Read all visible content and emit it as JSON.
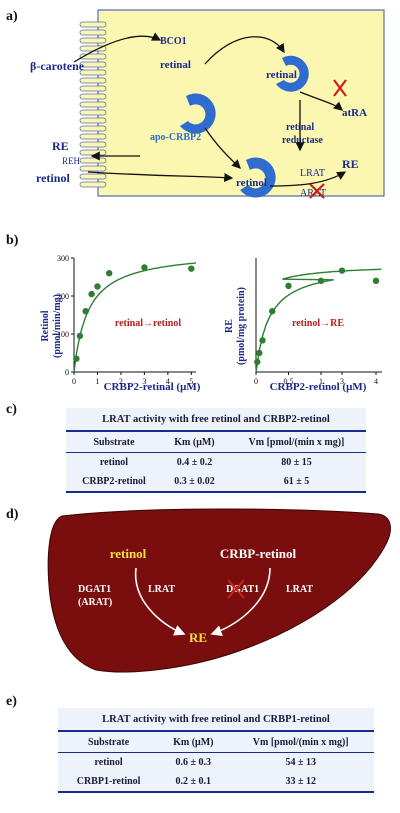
{
  "panel_a": {
    "label": "a)",
    "beta_carotene": "β-carotene",
    "bco1": "BCO1",
    "retinal_top": "retinal",
    "retinal_right": "retinal",
    "atra": "atRA",
    "apo_crbp2": "apo-CRBP2",
    "retinal_reductase_1": "retinal",
    "retinal_reductase_2": "reductase",
    "re_left": "RE",
    "reh": "REH",
    "retinol_left": "retinol",
    "retinol_bound": "retinol",
    "lrat": "LRAT",
    "arat": "ARAT",
    "re_right": "RE"
  },
  "panel_b": {
    "label": "b)",
    "chart_data": [
      {
        "type": "scatter",
        "ylabel_1": "Retinol",
        "ylabel_2": "(pmol/min/mg)",
        "xlabel": "CRBP2-retinal (μM)",
        "annotation": "retinal→retinol",
        "xticks": [
          "0",
          "1",
          "2",
          "3",
          "4",
          "5"
        ],
        "yticks": [
          "0",
          "100",
          "200",
          "300"
        ],
        "ylim": [
          0,
          300
        ],
        "xlim": [
          0,
          5.2
        ],
        "x": [
          0.1,
          0.25,
          0.5,
          0.75,
          1.0,
          1.5,
          3.0,
          5.0
        ],
        "y": [
          35,
          95,
          160,
          205,
          225,
          260,
          275,
          272
        ],
        "fit": {
          "vmax": 320,
          "km": 0.6
        }
      },
      {
        "type": "scatter",
        "ylabel_1": "RE",
        "ylabel_2": "(pmol/mg protein)",
        "xlabel": "CRBP2-retinol (μM)",
        "annotation": "retinol→RE",
        "xticks": [
          "0",
          "0.5",
          "1",
          "3",
          "4"
        ],
        "x": [
          0.02,
          0.05,
          0.1,
          0.25,
          0.5,
          1.0,
          3.0,
          4.0
        ],
        "y": [
          0.08,
          0.15,
          0.25,
          0.48,
          0.68,
          0.72,
          0.8,
          0.72
        ],
        "fit": {
          "vmax": 0.85,
          "km": 0.2
        }
      }
    ]
  },
  "panel_c": {
    "label": "c)",
    "title": "LRAT activity with free retinol and CRBP2-retinol",
    "headers": [
      "Substrate",
      "Km (μM)",
      "Vm [pmol/(min x mg)]"
    ],
    "rows": [
      [
        "retinol",
        "0.4 ± 0.2",
        "80 ± 15"
      ],
      [
        "CRBP2-retinol",
        "0.3 ± 0.02",
        "61 ± 5"
      ]
    ]
  },
  "panel_d": {
    "label": "d)",
    "retinol": "retinol",
    "crbp_retinol": "CRBP-retinol",
    "dgat1_left_1": "DGAT1",
    "dgat1_left_2": "(ARAT)",
    "lrat_left": "LRAT",
    "dgat1_right": "DGAT1",
    "lrat_right": "LRAT",
    "re": "RE"
  },
  "panel_e": {
    "label": "e)",
    "title": "LRAT activity with free retinol and CRBP1-retinol",
    "headers": [
      "Substrate",
      "Km (μM)",
      "Vm [pmol/(min x mg)]"
    ],
    "rows": [
      [
        "retinol",
        "0.6 ± 0.3",
        "54 ± 13"
      ],
      [
        "CRBP1-retinol",
        "0.2 ± 0.1",
        "33 ± 12"
      ]
    ]
  },
  "colors": {
    "cell": "#fbf7b0",
    "protein": "#2f6cd0",
    "text_blue": "#1a2a8c",
    "red": "#c82020",
    "green": "#2e7d32",
    "liver": "#7a0e0e",
    "yellow": "#f5e23a"
  }
}
